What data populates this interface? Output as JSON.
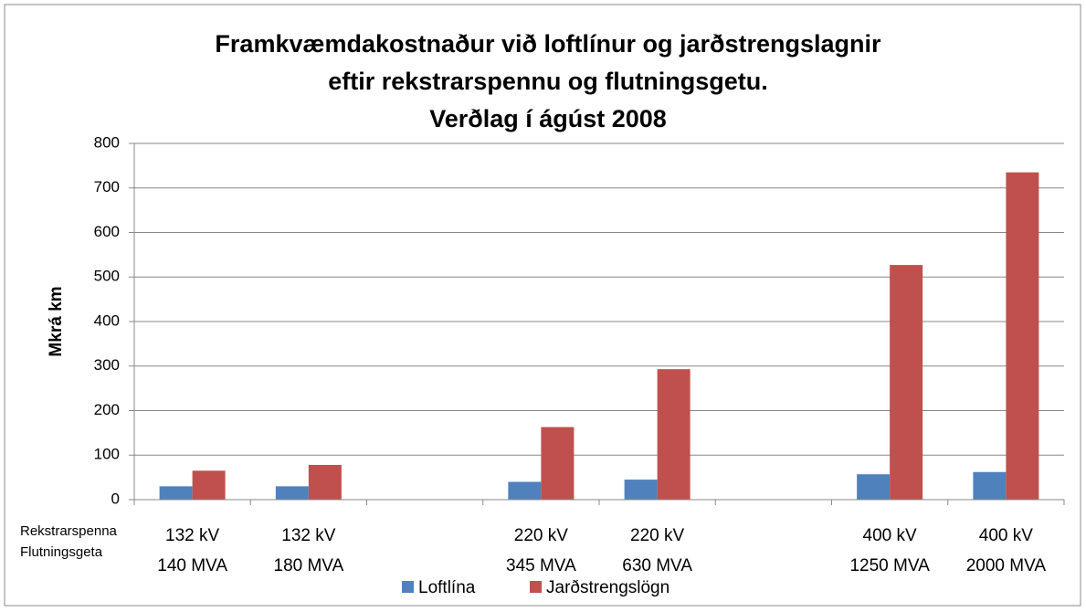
{
  "chart_data": {
    "type": "bar",
    "title": [
      "Framkvæmdakostnaður  við loftlínur og jarðstrengslagnir",
      "eftir rekstrarspennu og flutningsgetu.",
      "Verðlag í ágúst 2008"
    ],
    "y_label": "Mkrá km",
    "row_labels": [
      "Rekstrarspenna",
      "Flutningsgeta"
    ],
    "categories": [
      [
        "132 kV",
        "140 MVA"
      ],
      [
        "132 kV",
        "180 MVA"
      ],
      null,
      [
        "220 kV",
        "345 MVA"
      ],
      [
        "220 kV",
        "630 MVA"
      ],
      null,
      [
        "400 kV",
        "1250 MVA"
      ],
      [
        "400 kV",
        "2000 MVA"
      ]
    ],
    "series": [
      {
        "name": "Loftlína",
        "color": "#4f81bd",
        "values": [
          30,
          30,
          null,
          40,
          45,
          null,
          57,
          62
        ]
      },
      {
        "name": "Jarðstrengslögn",
        "color": "#c0504d",
        "values": [
          65,
          78,
          null,
          163,
          293,
          null,
          527,
          735
        ]
      }
    ],
    "ylim": [
      0,
      800
    ],
    "yticks": [
      0,
      100,
      200,
      300,
      400,
      500,
      600,
      700,
      800
    ],
    "grid": true,
    "legend": "bottom"
  }
}
